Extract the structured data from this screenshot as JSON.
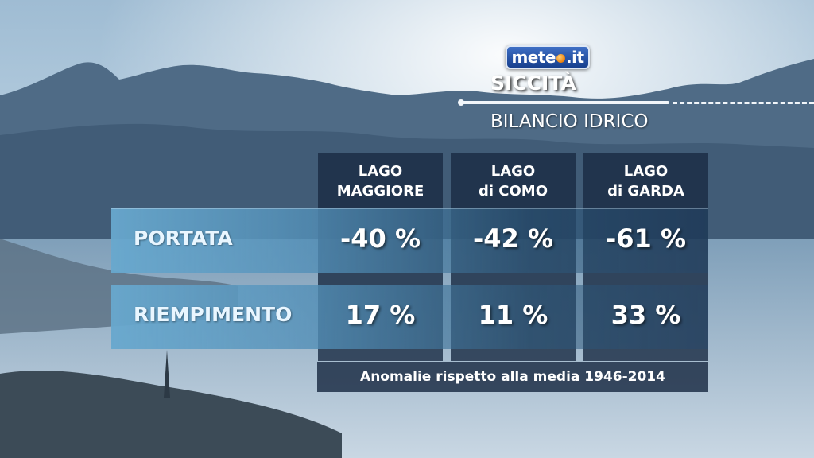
{
  "brand": {
    "logo_left": "mete",
    "logo_right": ".it"
  },
  "header": {
    "title": "SICCITÀ",
    "subtitle": "BILANCIO IDRICO"
  },
  "table": {
    "columns": [
      {
        "line1": "LAGO",
        "line2": "MAGGIORE"
      },
      {
        "line1": "LAGO",
        "line2": "di COMO"
      },
      {
        "line1": "LAGO",
        "line2": "di GARDA"
      }
    ],
    "rows": [
      {
        "label": "PORTATA",
        "values": [
          "-40 %",
          "-42 %",
          "-61 %"
        ]
      },
      {
        "label": "RIEMPIMENTO",
        "values": [
          "17 %",
          "11 %",
          "33 %"
        ]
      }
    ],
    "footnote": "Anomalie rispetto alla media  1946-2014"
  },
  "colors": {
    "panel": "#192a42",
    "band": "#68a8ce",
    "sky": "#dce8f2"
  }
}
